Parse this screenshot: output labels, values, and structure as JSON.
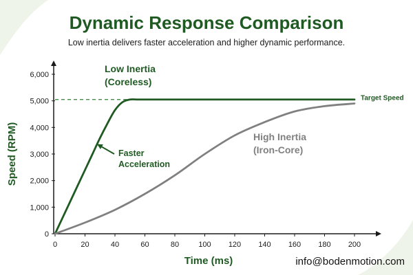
{
  "colors": {
    "background": "#ffffff",
    "title": "#1f5a22",
    "subtitle": "#1a1a1a",
    "low_inertia": "#1f5a22",
    "high_inertia": "#808080",
    "axis": "#1a1a1a",
    "target_line": "#2e7d32",
    "corner_accent": "#e8f1e3"
  },
  "chart_data": {
    "type": "line",
    "title": "Dynamic Response Comparison",
    "subtitle": "Low inertia delivers faster acceleration and higher dynamic performance.",
    "xlabel": "Time (ms)",
    "ylabel": "Speed (RPM)",
    "xlim": [
      0,
      200
    ],
    "ylim": [
      0,
      6000
    ],
    "x_ticks": [
      0,
      20,
      40,
      60,
      80,
      100,
      120,
      140,
      160,
      180,
      200
    ],
    "y_ticks": [
      0,
      1000,
      2000,
      3000,
      4000,
      5000,
      6000
    ],
    "y_tick_labels": [
      "0",
      "1,000",
      "2,000",
      "3,000",
      "4,000",
      "5,000",
      "6,000"
    ],
    "grid": false,
    "legend": "none",
    "series": [
      {
        "name": "Low Inertia (Coreless)",
        "label_lines": [
          "Low Inertia",
          "(Coreless)"
        ],
        "x": [
          0,
          5,
          10,
          15,
          20,
          25,
          30,
          35,
          40,
          45,
          50,
          55,
          60,
          80,
          100,
          120,
          140,
          160,
          180,
          200
        ],
        "y": [
          0,
          600,
          1200,
          1800,
          2400,
          3000,
          3600,
          4150,
          4650,
          4950,
          5050,
          5050,
          5050,
          5050,
          5050,
          5050,
          5050,
          5050,
          5050,
          5050
        ]
      },
      {
        "name": "High Inertia (Iron-Core)",
        "label_lines": [
          "High Inertia",
          "(Iron-Core)"
        ],
        "x": [
          0,
          20,
          40,
          60,
          80,
          100,
          120,
          140,
          160,
          180,
          200
        ],
        "y": [
          0,
          420,
          900,
          1500,
          2200,
          3000,
          3700,
          4200,
          4600,
          4800,
          4900
        ]
      }
    ],
    "reference_line": {
      "y": 5050,
      "label": "Target Speed"
    },
    "annotations": [
      {
        "lines": [
          "Faster",
          "Acceleration"
        ],
        "points_to": {
          "x": 27,
          "y": 3500
        }
      }
    ]
  },
  "footer": {
    "contact": "info@bodenmotion.com"
  }
}
